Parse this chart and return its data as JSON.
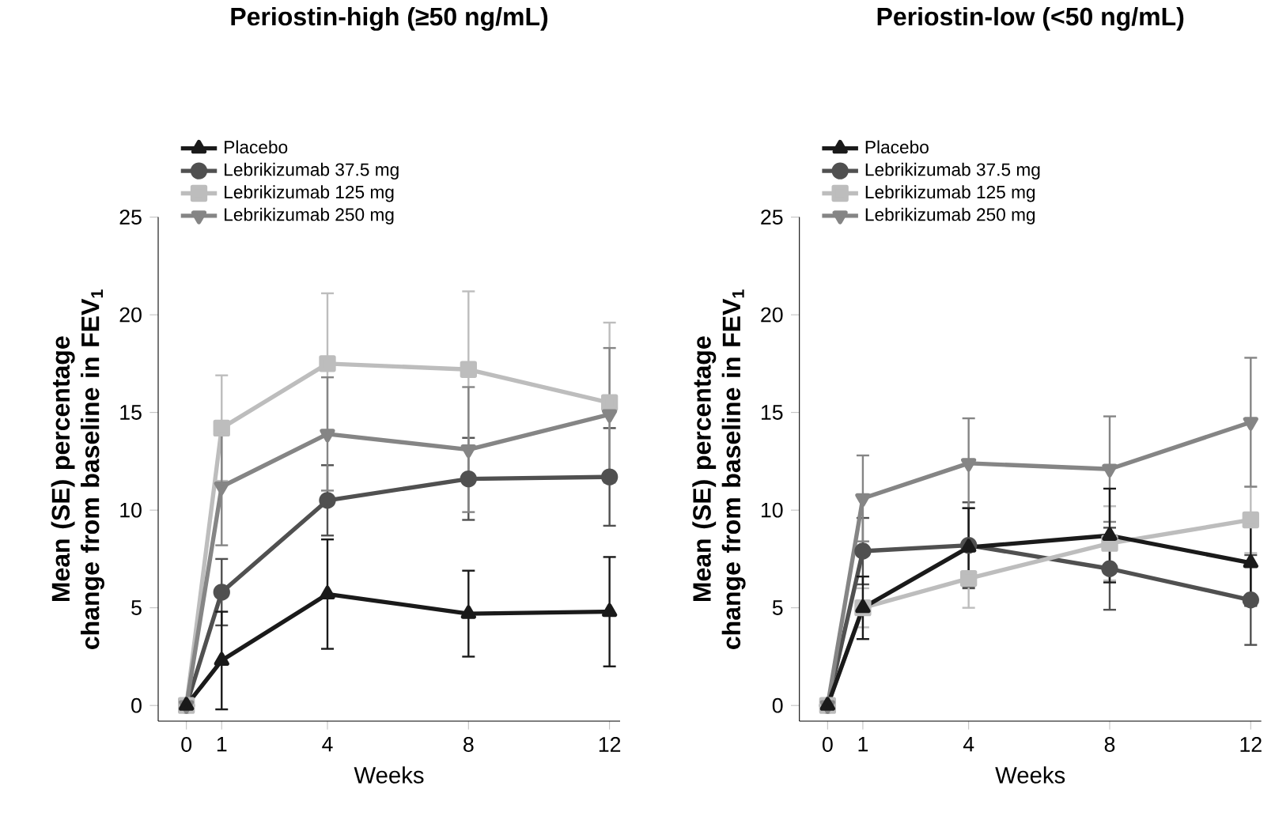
{
  "chart_data": [
    {
      "type": "line",
      "title": "Periostin-high (≥50 ng/mL)",
      "xlabel": "Weeks",
      "ylabel": "Mean (SE) percentage change from baseline in FEV$_{1}$",
      "x": [
        0,
        1,
        4,
        8,
        12
      ],
      "xlim": [
        -0.8,
        12.3
      ],
      "xticks": [
        0,
        1,
        4,
        8,
        12
      ],
      "ylim": [
        -0.8,
        25
      ],
      "yticks": [
        0,
        5,
        10,
        15,
        20,
        25
      ],
      "legend": "top left",
      "line_style": "solid",
      "series": [
        {
          "name": "Placebo",
          "color": "#1a1a1a",
          "marker": "triangle",
          "values": [
            0,
            2.3,
            5.7,
            4.7,
            4.8
          ],
          "errors": [
            null,
            2.5,
            2.8,
            2.2,
            2.8
          ]
        },
        {
          "name": "Lebrikizumab 37.5 mg",
          "color": "#505050",
          "marker": "circle",
          "values": [
            0,
            5.8,
            10.5,
            11.6,
            11.7
          ],
          "errors": [
            null,
            1.7,
            1.8,
            2.1,
            2.5
          ]
        },
        {
          "name": "Lebrikizumab 125 mg",
          "color": "#bdbdbd",
          "marker": "square",
          "values": [
            0,
            14.2,
            17.5,
            17.2,
            15.5
          ],
          "errors": [
            null,
            2.7,
            3.6,
            4.0,
            4.1
          ]
        },
        {
          "name": "Lebrikizumab 250 mg",
          "color": "#858585",
          "marker": "triangle down",
          "values": [
            0,
            11.2,
            13.9,
            13.1,
            14.9
          ],
          "errors": [
            null,
            3.0,
            2.9,
            3.2,
            3.4
          ]
        }
      ]
    },
    {
      "type": "line",
      "title": "Periostin-low (<50 ng/mL)",
      "xlabel": "Weeks",
      "ylabel": "Mean (SE) percentage change from baseline in FEV$_{1}$",
      "x": [
        0,
        1,
        4,
        8,
        12
      ],
      "xlim": [
        -0.8,
        12.3
      ],
      "xticks": [
        0,
        1,
        4,
        8,
        12
      ],
      "ylim": [
        -0.8,
        25
      ],
      "yticks": [
        0,
        5,
        10,
        15,
        20,
        25
      ],
      "legend": "top left",
      "line_style": "solid",
      "series": [
        {
          "name": "Placebo",
          "color": "#1a1a1a",
          "marker": "triangle",
          "values": [
            0,
            5.0,
            8.1,
            8.7,
            7.3
          ],
          "errors": [
            null,
            1.6,
            2.0,
            2.4,
            2.2
          ]
        },
        {
          "name": "Lebrikizumab 37.5 mg",
          "color": "#505050",
          "marker": "circle",
          "values": [
            0,
            7.9,
            8.2,
            7.0,
            5.4
          ],
          "errors": [
            null,
            1.7,
            2.2,
            2.1,
            2.3
          ]
        },
        {
          "name": "Lebrikizumab 125 mg",
          "color": "#bdbdbd",
          "marker": "square",
          "values": [
            0,
            5.0,
            6.5,
            8.3,
            9.5
          ],
          "errors": [
            null,
            1.0,
            1.5,
            1.9,
            1.7
          ]
        },
        {
          "name": "Lebrikizumab 250 mg",
          "color": "#858585",
          "marker": "triangle down",
          "values": [
            0,
            10.6,
            12.4,
            12.1,
            14.5
          ],
          "errors": [
            null,
            2.2,
            2.3,
            2.7,
            3.3
          ]
        }
      ]
    }
  ]
}
